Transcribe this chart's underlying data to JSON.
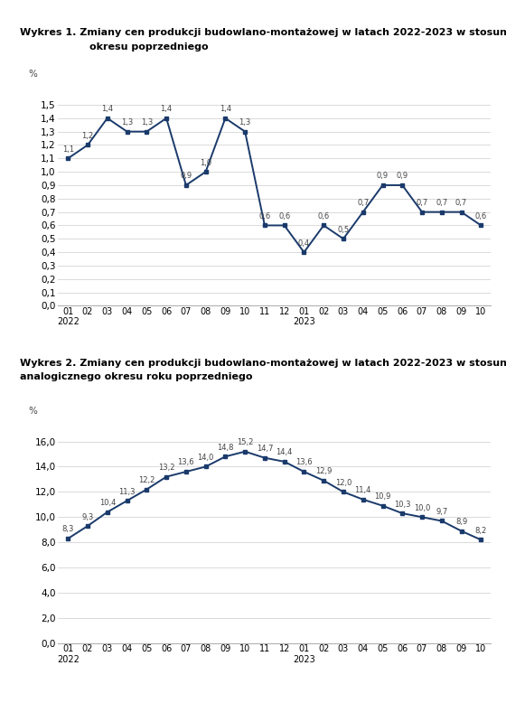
{
  "title1_line1": "Wykres 1. Zmiany cen produkcji budowlano-montażowej w latach 2022-2023 w stosunku do",
  "title1_line2": "okresu poprzedniego",
  "title2_line1": "Wykres 2. Zmiany cen produkcji budowlano-montażowej w latach 2022-2023 w stosunku do",
  "title2_line2": "analogicznego okresu roku poprzedniego",
  "ylabel": "%",
  "line_color": "#1a3a6b",
  "bg_color": "#ffffff",
  "grid_color": "#cccccc",
  "chart1": {
    "values": [
      1.1,
      1.2,
      1.4,
      1.3,
      1.3,
      1.4,
      0.9,
      1.0,
      1.4,
      1.3,
      0.6,
      0.6,
      0.4,
      0.6,
      0.5,
      0.7,
      0.9,
      0.9,
      0.7,
      0.7,
      0.7,
      0.6
    ],
    "labels": [
      "01\n2022",
      "02",
      "03",
      "04",
      "05",
      "06",
      "07",
      "08",
      "09",
      "10",
      "11",
      "12",
      "01\n2023",
      "02",
      "03",
      "04",
      "05",
      "06",
      "07",
      "08",
      "09",
      "10"
    ],
    "yticks": [
      0.0,
      0.1,
      0.2,
      0.3,
      0.4,
      0.5,
      0.6,
      0.7,
      0.8,
      0.9,
      1.0,
      1.1,
      1.2,
      1.3,
      1.4,
      1.5
    ],
    "ylim": [
      0.0,
      1.6
    ]
  },
  "chart2": {
    "values": [
      8.3,
      9.3,
      10.4,
      11.3,
      12.2,
      13.2,
      13.6,
      14.0,
      14.8,
      15.2,
      14.7,
      14.4,
      13.6,
      12.9,
      12.0,
      11.4,
      10.9,
      10.3,
      10.0,
      9.7,
      8.9,
      8.2
    ],
    "labels": [
      "01\n2022",
      "02",
      "03",
      "04",
      "05",
      "06",
      "07",
      "08",
      "09",
      "10",
      "11",
      "12",
      "01\n2023",
      "02",
      "03",
      "04",
      "05",
      "06",
      "07",
      "08",
      "09",
      "10"
    ],
    "yticks": [
      0.0,
      2.0,
      4.0,
      6.0,
      8.0,
      10.0,
      12.0,
      14.0,
      16.0
    ],
    "ylim": [
      0.0,
      17.0
    ]
  }
}
